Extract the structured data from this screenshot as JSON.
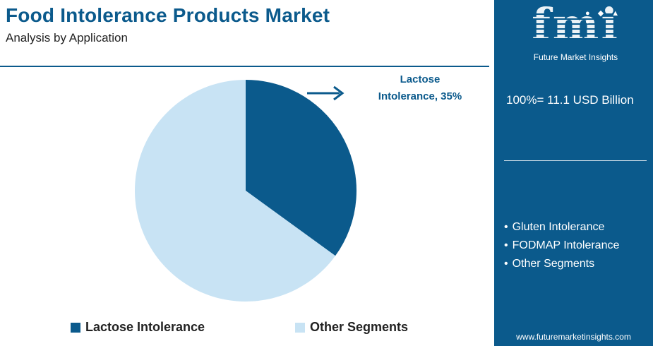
{
  "header": {
    "title": "Food Intolerance Products Market",
    "subtitle": "Analysis by Application"
  },
  "callout": {
    "line1": "Lactose",
    "line2": "Intolerance, 35%"
  },
  "chart_data": {
    "type": "pie",
    "title": "Food Intolerance Products Market",
    "subtitle": "Analysis by Application",
    "slices": [
      {
        "label": "Lactose Intolerance",
        "value": 35,
        "color": "#0b5a8c"
      },
      {
        "label": "Other Segments",
        "value": 65,
        "color": "#c8e3f4"
      }
    ],
    "data_labels": [
      "Lactose Intolerance, 35%"
    ],
    "legend_position": "bottom"
  },
  "panel": {
    "logo_text": "fmi",
    "logo_tagline": "Future Market Insights",
    "logo_icons": "● ◆ ▲ ●",
    "total": "100%= 11.1 USD Billion",
    "other_segments": [
      "Gluten Intolerance",
      "FODMAP Intolerance",
      "Other Segments"
    ],
    "website": "www.futuremarketinsights.com"
  },
  "colors": {
    "brand_blue": "#0b5a8c",
    "light_blue": "#c8e3f4",
    "white": "#ffffff"
  }
}
